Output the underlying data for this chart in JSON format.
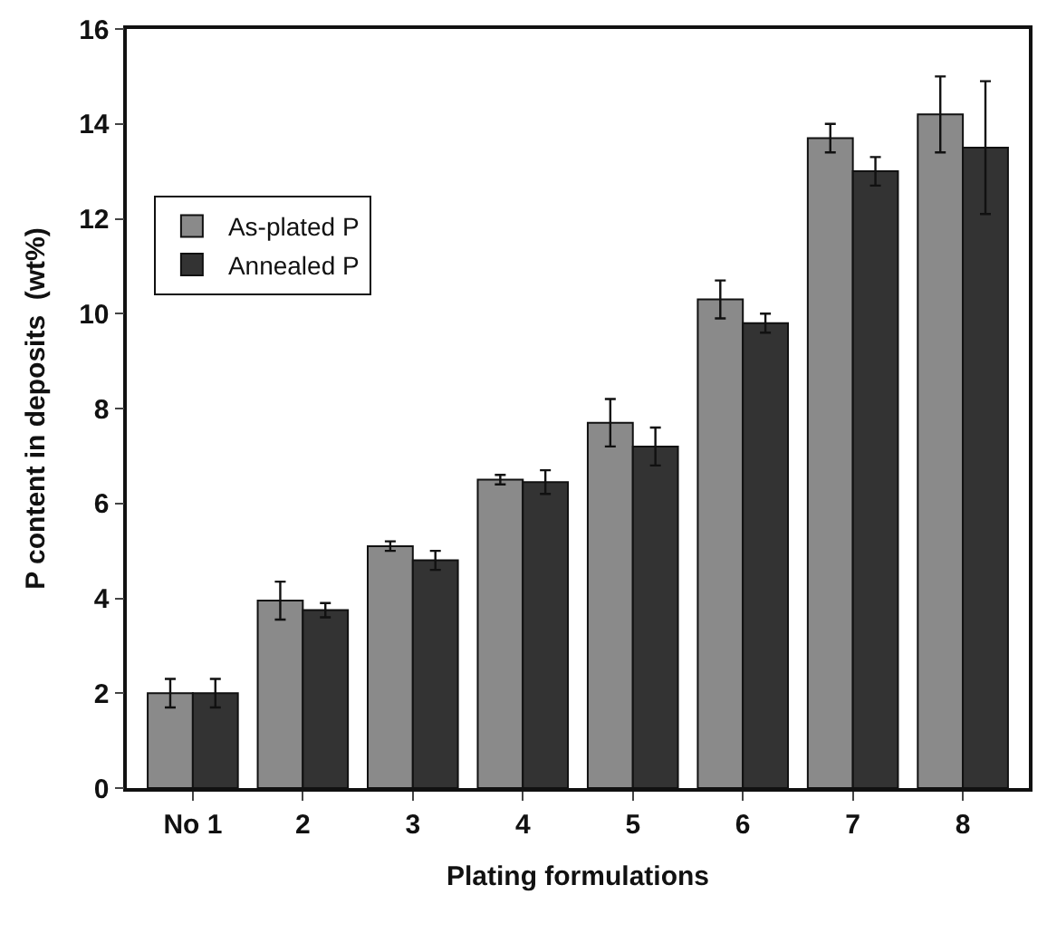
{
  "chart_data": {
    "type": "bar",
    "xlabel": "Plating formulations",
    "ylabel": "P content in deposits  (wt%)",
    "categories": [
      "No 1",
      "2",
      "3",
      "4",
      "5",
      "6",
      "7",
      "8"
    ],
    "series": [
      {
        "name": "As-plated P",
        "color": "#8a8a8a",
        "values": [
          2.0,
          3.95,
          5.1,
          6.5,
          7.7,
          10.3,
          13.7,
          14.2
        ],
        "errors": [
          0.3,
          0.4,
          0.1,
          0.1,
          0.5,
          0.4,
          0.3,
          0.8
        ]
      },
      {
        "name": "Annealed P",
        "color": "#333333",
        "values": [
          2.0,
          3.75,
          4.8,
          6.45,
          7.2,
          9.8,
          13.0,
          13.5
        ],
        "errors": [
          0.3,
          0.15,
          0.2,
          0.25,
          0.4,
          0.2,
          0.3,
          1.4
        ]
      }
    ],
    "ylim": [
      0,
      16
    ],
    "yticks": [
      0,
      2,
      4,
      6,
      8,
      10,
      12,
      14,
      16
    ],
    "legend": "top left"
  }
}
